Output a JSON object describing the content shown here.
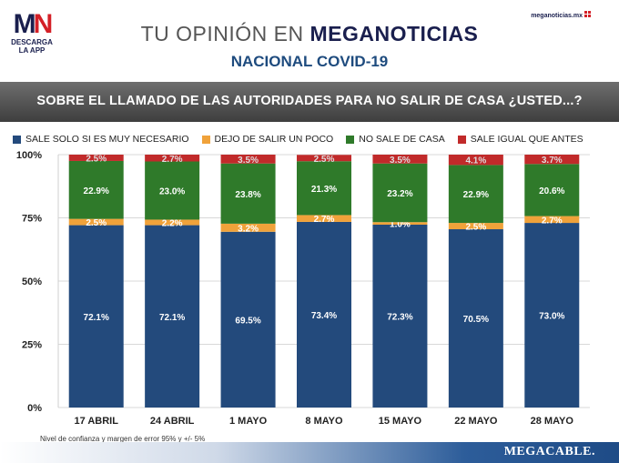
{
  "header": {
    "logo_text_m": "M",
    "logo_text_n": "N",
    "logo_sub": "DESCARGA LA APP",
    "site": "meganoticias.mx",
    "title_light": "TU OPINIÓN EN ",
    "title_bold": "MEGANOTICIAS",
    "subtitle": "NACIONAL COVID-19"
  },
  "banner": {
    "text": "SOBRE EL LLAMADO DE LAS AUTORIDADES PARA NO SALIR DE CASA ¿USTED...?"
  },
  "footnote": "Nivel de confianza y margen de error 95% y +/- 5%",
  "footer": {
    "brand": "MEGACABLE."
  },
  "chart_data": {
    "type": "bar",
    "stacked": true,
    "categories": [
      "17 ABRIL",
      "24 ABRIL",
      "1 MAYO",
      "8 MAYO",
      "15 MAYO",
      "22 MAYO",
      "28 MAYO"
    ],
    "series": [
      {
        "name": "SALE SOLO SI ES MUY NECESARIO",
        "color": "#234a7c",
        "values": [
          72.1,
          72.1,
          69.5,
          73.4,
          72.3,
          70.5,
          73.0
        ]
      },
      {
        "name": "DEJO DE SALIR UN POCO",
        "color": "#f0a23a",
        "values": [
          2.5,
          2.2,
          3.2,
          2.7,
          1.0,
          2.5,
          2.7
        ]
      },
      {
        "name": "NO SALE DE CASA",
        "color": "#2f7a2a",
        "values": [
          22.9,
          23.0,
          23.8,
          21.3,
          23.2,
          22.9,
          20.6
        ]
      },
      {
        "name": "SALE IGUAL QUE ANTES",
        "color": "#c12a2a",
        "values": [
          2.5,
          2.7,
          3.5,
          2.5,
          3.5,
          4.1,
          3.7
        ]
      }
    ],
    "labels": [
      [
        "72.1%",
        "2.5%",
        "22.9%",
        "2.5%"
      ],
      [
        "72.1%",
        "2.2%",
        "23.0%",
        "2.7%"
      ],
      [
        "69.5%",
        "3.2%",
        "23.8%",
        "3.5%"
      ],
      [
        "73.4%",
        "2.7%",
        "21.3%",
        "2.5%"
      ],
      [
        "72.3%",
        "1.0%",
        "23.2%",
        "3.5%"
      ],
      [
        "70.5%",
        "2.5%",
        "22.9%",
        "4.1%"
      ],
      [
        "73.0%",
        "2.7%",
        "20.6%",
        "3.7%"
      ]
    ],
    "yticks": [
      "0%",
      "25%",
      "50%",
      "75%",
      "100%"
    ],
    "ylim": [
      0,
      100
    ],
    "grid": true,
    "legend_position": "top"
  }
}
